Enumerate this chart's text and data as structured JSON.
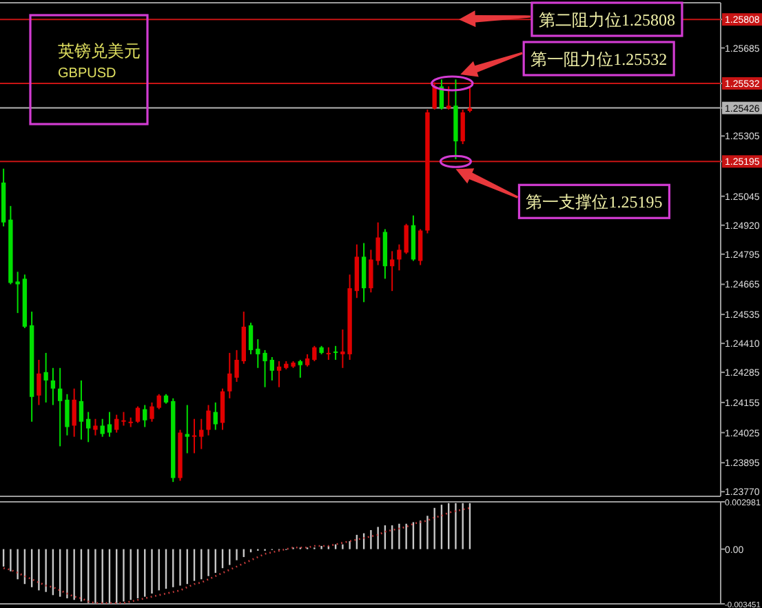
{
  "chart_data": [
    {
      "type": "candlestick",
      "title": "英镑兑美元",
      "subtitle": "GBPUSD",
      "tick_labels": "y",
      "categories": [
        null,
        null,
        null,
        null,
        null,
        null,
        null,
        null,
        null,
        null,
        null,
        null,
        null,
        null,
        null,
        null,
        null,
        null,
        null,
        null,
        null,
        null,
        null,
        null,
        null,
        null,
        null,
        null,
        null,
        null,
        null,
        null,
        null,
        null,
        null,
        null,
        null,
        null,
        null,
        null,
        null,
        null,
        null,
        null,
        null,
        null,
        null,
        null,
        null,
        null,
        null,
        null,
        null,
        null,
        null,
        null,
        null,
        null,
        null,
        null,
        null,
        null,
        null,
        null,
        null,
        null,
        null,
        null,
        null,
        null,
        null,
        null,
        null,
        null,
        null,
        null,
        null,
        null,
        null,
        null,
        null,
        null,
        null,
        null,
        null,
        null,
        null,
        null,
        null,
        null,
        null,
        null,
        null,
        null,
        null,
        null,
        null,
        null,
        null,
        null,
        null,
        null
      ],
      "ohlc": [
        [
          1.25104,
          1.25164,
          1.24915,
          1.24932
        ],
        [
          1.24944,
          1.25003,
          1.24665,
          1.24671
        ],
        [
          1.24677,
          1.24719,
          1.24541,
          1.24665
        ],
        [
          1.24689,
          1.24707,
          1.24476,
          1.24482
        ],
        [
          1.24488,
          1.24547,
          1.24072,
          1.24179
        ],
        [
          1.24185,
          1.24339,
          1.24144,
          1.2428
        ],
        [
          1.24286,
          1.24369,
          1.24155,
          1.2425
        ],
        [
          1.2425,
          1.24304,
          1.24144,
          1.24215
        ],
        [
          1.24215,
          1.24304,
          1.23966,
          1.24161
        ],
        [
          1.24167,
          1.24191,
          1.24013,
          1.24049
        ],
        [
          1.24055,
          1.24215,
          1.24007,
          1.24167
        ],
        [
          1.24161,
          1.2425,
          1.23995,
          1.24072
        ],
        [
          1.24084,
          1.24114,
          1.23984,
          1.24043
        ],
        [
          1.24037,
          1.24084,
          1.24013,
          1.24055
        ],
        [
          1.24055,
          1.24084,
          1.24007,
          1.24019
        ],
        [
          1.24061,
          1.24114,
          1.24007,
          1.24025
        ],
        [
          1.24037,
          1.24102,
          1.24025,
          1.24084
        ],
        [
          1.24072,
          1.24114,
          1.24055,
          1.24078
        ],
        [
          1.24067,
          1.2409,
          1.24049,
          1.24072
        ],
        [
          1.24072,
          1.24138,
          1.24067,
          1.24132
        ],
        [
          1.24126,
          1.24144,
          1.24049,
          1.24078
        ],
        [
          1.24084,
          1.24155,
          1.24072,
          1.24138
        ],
        [
          1.24132,
          1.24191,
          1.24126,
          1.24185
        ],
        [
          1.24185,
          1.24191,
          1.2415,
          1.24155
        ],
        [
          1.24161,
          1.24173,
          1.23812,
          1.23829
        ],
        [
          1.23829,
          1.24037,
          1.23817,
          1.24025
        ],
        [
          1.24019,
          1.24144,
          1.23936,
          1.24007
        ],
        [
          1.24007,
          1.24084,
          1.23936,
          1.24013
        ],
        [
          1.24007,
          1.24084,
          1.23954,
          1.24037
        ],
        [
          1.24037,
          1.24144,
          1.24013,
          1.2412
        ],
        [
          1.24114,
          1.24155,
          1.24037,
          1.24061
        ],
        [
          1.24067,
          1.24215,
          1.24037,
          1.24203
        ],
        [
          1.24203,
          1.24369,
          1.24173,
          1.2428
        ],
        [
          1.24262,
          1.24381,
          1.24244,
          1.24339
        ],
        [
          1.24333,
          1.24547,
          1.24322,
          1.24482
        ],
        [
          1.24488,
          1.24499,
          1.24363,
          1.24381
        ],
        [
          1.24387,
          1.24428,
          1.24304,
          1.24363
        ],
        [
          1.24369,
          1.24381,
          1.24221,
          1.24333
        ],
        [
          1.24339,
          1.24351,
          1.2425,
          1.24292
        ],
        [
          1.24292,
          1.24333,
          1.24221,
          1.2431
        ],
        [
          1.24304,
          1.24333,
          1.24298,
          1.24322
        ],
        [
          1.2431,
          1.24333,
          1.24304,
          1.24327
        ],
        [
          1.24333,
          1.24339,
          1.24262,
          1.24316
        ],
        [
          1.24316,
          1.24363,
          1.2431,
          1.24345
        ],
        [
          1.24339,
          1.24399,
          1.24333,
          1.24393
        ],
        [
          1.24393,
          1.24399,
          1.24363,
          1.24369
        ],
        [
          1.24363,
          1.24393,
          1.24339,
          1.24369
        ],
        [
          1.24375,
          1.24399,
          1.24339,
          1.24369
        ],
        [
          1.24363,
          1.2447,
          1.24304,
          1.24375
        ],
        [
          1.24363,
          1.24707,
          1.24339,
          1.24648
        ],
        [
          1.24636,
          1.24837,
          1.24606,
          1.24784
        ],
        [
          1.24784,
          1.24843,
          1.24588,
          1.24648
        ],
        [
          1.24648,
          1.24814,
          1.2463,
          1.24772
        ],
        [
          1.24766,
          1.24932,
          1.24748,
          1.24867
        ],
        [
          1.24891,
          1.24903,
          1.24689,
          1.24743
        ],
        [
          1.24743,
          1.24808,
          1.24636,
          1.24772
        ],
        [
          1.24772,
          1.24837,
          1.24725,
          1.24814
        ],
        [
          1.24802,
          1.24926,
          1.24796,
          1.2492
        ],
        [
          1.2492,
          1.24962,
          1.24766,
          1.24772
        ],
        [
          1.24766,
          1.24903,
          1.24748,
          1.24897
        ],
        [
          1.24897,
          1.25419,
          1.24885,
          1.25407
        ],
        [
          1.25424,
          1.25537,
          1.25419,
          1.25519
        ],
        [
          1.25519,
          1.25549,
          1.25419,
          1.25424
        ],
        [
          1.25424,
          1.25519,
          1.25419,
          1.25436
        ],
        [
          1.25436,
          1.25549,
          1.25205,
          1.25282
        ],
        [
          1.25282,
          1.25419,
          1.2527,
          1.25407
        ],
        [
          1.25413,
          1.25519,
          1.25407,
          1.25426
        ],
        null,
        null,
        null,
        null,
        null,
        null,
        null,
        null,
        null,
        null,
        null,
        null,
        null,
        null,
        null,
        null,
        null,
        null,
        null,
        null,
        null,
        null,
        null,
        null,
        null,
        null,
        null,
        null,
        null,
        null,
        null,
        null,
        null,
        null,
        null
      ],
      "colors": [
        "#00e000",
        "#00e000",
        "#00e000",
        "#00e000",
        "#00e000",
        "#e00000",
        "#00e000",
        "#00e000",
        "#00e000",
        "#00e000",
        "#e00000",
        "#00e000",
        "#00e000",
        "#e00000",
        "#00e000",
        "#00e000",
        "#e00000",
        "#e00000",
        "#e00000",
        "#e00000",
        "#00e000",
        "#e00000",
        "#e00000",
        "#00e000",
        "#00e000",
        "#e00000",
        "#00e000",
        "#e00000",
        "#e00000",
        "#e00000",
        "#00e000",
        "#e00000",
        "#e00000",
        "#e00000",
        "#e00000",
        "#00e000",
        "#00e000",
        "#00e000",
        "#00e000",
        "#e00000",
        "#e00000",
        "#e00000",
        "#00e000",
        "#e00000",
        "#e00000",
        "#00e000",
        "#e00000",
        "#00e000",
        "#e00000",
        "#e00000",
        "#e00000",
        "#00e000",
        "#e00000",
        "#e00000",
        "#00e000",
        "#e00000",
        "#e00000",
        "#e00000",
        "#00e000",
        "#e00000",
        "#e00000",
        "#e00000",
        "#00e000",
        "#e00000",
        "#00e000",
        "#e00000",
        "#e00000",
        null,
        null,
        null,
        null,
        null,
        null,
        null,
        null,
        null,
        null,
        null,
        null,
        null,
        null,
        null,
        null,
        null,
        null,
        null,
        null,
        null,
        null,
        null,
        null,
        null,
        null,
        null,
        null,
        null,
        null,
        null,
        null,
        null,
        null,
        null
      ],
      "ylim": [
        1.2375,
        1.2588
      ],
      "yticks": [
        1.25808,
        1.25685,
        1.25532,
        1.25426,
        1.25305,
        1.25195,
        1.25045,
        {
          "value": 1.2492,
          "label": "1.24920"
        },
        1.24795,
        1.24665,
        1.24535,
        {
          "value": 1.2441,
          "label": "1.24410"
        },
        1.24285,
        1.24155,
        1.24025,
        1.23895,
        {
          "value": 1.2377,
          "label": "1.23770"
        }
      ],
      "ref_lines": [
        {
          "axis": "y",
          "value": 1.25808,
          "label": "第二阻力位1.25808",
          "color": "#c81414"
        },
        {
          "axis": "y",
          "value": 1.25532,
          "label": "第一阻力位1.25532",
          "color": "#c81414"
        },
        {
          "axis": "y",
          "value": 1.25426,
          "color": "#b4b4b4"
        },
        {
          "axis": "y",
          "value": 1.25195,
          "label": "第一支撑位1.25195",
          "color": "#c81414"
        }
      ]
    },
    {
      "type": "bar",
      "tick_labels": "y",
      "categories": [
        null,
        null,
        null,
        null,
        null,
        null,
        null,
        null,
        null,
        null,
        null,
        null,
        null,
        null,
        null,
        null,
        null,
        null,
        null,
        null,
        null,
        null,
        null,
        null,
        null,
        null,
        null,
        null,
        null,
        null,
        null,
        null,
        null,
        null,
        null,
        null,
        null,
        null,
        null,
        null,
        null,
        null,
        null,
        null,
        null,
        null,
        null,
        null,
        null,
        null,
        null,
        null,
        null,
        null,
        null,
        null,
        null,
        null,
        null,
        null,
        null,
        null,
        null,
        null,
        null,
        null,
        null,
        null,
        null,
        null,
        null,
        null,
        null,
        null,
        null,
        null,
        null,
        null,
        null,
        null,
        null,
        null,
        null,
        null,
        null,
        null,
        null,
        null,
        null,
        null,
        null,
        null,
        null,
        null,
        null,
        null,
        null,
        null,
        null,
        null,
        null,
        null
      ],
      "series": [
        {
          "type": "bar",
          "color": "#c8c8c8",
          "values": [
            -0.0011,
            -0.0014,
            -0.0019,
            -0.0022,
            -0.0024,
            -0.0026,
            -0.0027,
            -0.0029,
            -0.003,
            -0.0031,
            -0.0032,
            -0.0033,
            -0.0034,
            -0.0034,
            -0.0034,
            -0.0034,
            -0.0034,
            -0.0033,
            -0.0032,
            -0.0031,
            -0.003,
            -0.0028,
            -0.0026,
            -0.0025,
            -0.0024,
            -0.0023,
            -0.0022,
            -0.002,
            -0.0019,
            -0.0017,
            -0.0015,
            -0.0012,
            -0.001,
            -0.0007,
            -0.0005,
            -0.0002,
            -0.0001,
            -0.0001,
            0.0,
            0.0,
            0.0,
            0.0001,
            0.0001,
            0.0001,
            0.0001,
            0.0002,
            0.0002,
            0.0003,
            0.0003,
            0.0005,
            0.0009,
            0.001,
            0.0012,
            0.0014,
            0.0015,
            0.0015,
            0.0016,
            0.0016,
            0.0017,
            0.0018,
            0.0021,
            0.0026,
            0.0028,
            0.0029,
            0.0029,
            0.0029,
            0.0029,
            null,
            null,
            null,
            null,
            null,
            null,
            null,
            null,
            null,
            null,
            null,
            null,
            null,
            null,
            null,
            null,
            null,
            null,
            null,
            null,
            null,
            null,
            null,
            null,
            null,
            null,
            null,
            null,
            null,
            null,
            null,
            null,
            null,
            null,
            null
          ]
        },
        {
          "type": "line",
          "color": "#c83c3c",
          "line_style": "dotted",
          "values": [
            -0.0012,
            -0.0013,
            -0.0015,
            -0.0017,
            -0.0019,
            -0.0021,
            -0.0023,
            -0.0024,
            -0.0026,
            -0.0028,
            -0.003,
            -0.0031,
            -0.0033,
            -0.0034,
            -0.0034,
            -0.0034,
            -0.0034,
            -0.0034,
            -0.0033,
            -0.0032,
            -0.0031,
            -0.003,
            -0.0029,
            -0.0028,
            -0.0027,
            -0.0026,
            -0.0024,
            -0.0022,
            -0.0021,
            -0.0019,
            -0.0017,
            -0.0015,
            -0.0013,
            -0.0011,
            -0.0009,
            -0.0007,
            -0.0005,
            -0.0003,
            -0.0002,
            -0.0001,
            0.0,
            0.0001,
            0.0001,
            0.0001,
            0.0002,
            0.0002,
            0.0002,
            0.0003,
            0.0004,
            0.0005,
            0.0006,
            0.0007,
            0.0008,
            0.0009,
            0.0011,
            0.0012,
            0.0013,
            0.0014,
            0.0016,
            0.0017,
            0.0018,
            0.002,
            0.0021,
            0.0023,
            0.0024,
            0.0025,
            0.0026,
            null,
            null,
            null,
            null,
            null,
            null,
            null,
            null,
            null,
            null,
            null,
            null,
            null,
            null,
            null,
            null,
            null,
            null,
            null,
            null,
            null,
            null,
            null,
            null,
            null,
            null,
            null,
            null,
            null,
            null,
            null,
            null,
            null,
            null,
            null
          ]
        }
      ],
      "ylim": [
        -0.003451,
        0.002981
      ],
      "yticks": [
        0.002981,
        {
          "value": 0,
          "label": "0.00"
        },
        -0.003451
      ]
    }
  ]
}
